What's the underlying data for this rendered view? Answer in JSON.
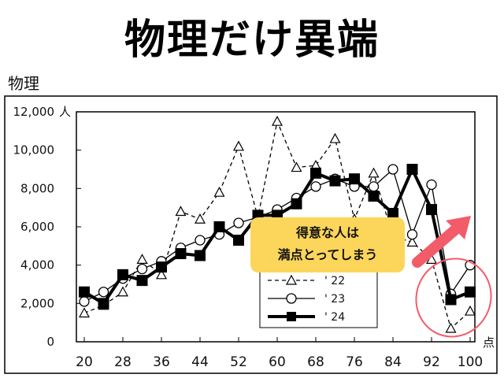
{
  "headline": "物理だけ異端",
  "subject_label": "物理",
  "callout": {
    "line1": "得意な人は",
    "line2": "満点とってしまう"
  },
  "colors": {
    "callout_bg": "#fcd65a",
    "arrow": "#f25c69",
    "highlight_ring": "#f25c69",
    "series": "#000000"
  },
  "chart_data": {
    "type": "line",
    "ylim": [
      0,
      12000
    ],
    "yticks": [
      0,
      2000,
      4000,
      6000,
      8000,
      10000,
      12000
    ],
    "ytick_labels": [
      "0",
      "2,000",
      "4,000",
      "6,000",
      "8,000",
      "10,000",
      "12,000"
    ],
    "y_unit": "人",
    "xlim": [
      20,
      100
    ],
    "xticks": [
      20,
      28,
      36,
      44,
      52,
      60,
      68,
      76,
      84,
      92,
      100
    ],
    "x_unit": "点",
    "legend_position": "bottom-right",
    "grid": false,
    "x": [
      20,
      24,
      28,
      32,
      36,
      40,
      44,
      48,
      52,
      56,
      60,
      64,
      68,
      72,
      76,
      80,
      84,
      88,
      92,
      96,
      100
    ],
    "series": [
      {
        "name": "' 22",
        "style": "dashed",
        "marker": "triangle",
        "values": [
          1500,
          1900,
          2600,
          4300,
          3500,
          6800,
          6400,
          7800,
          10200,
          6500,
          11500,
          9100,
          9200,
          10600,
          6400,
          8800,
          5500,
          5200,
          4300,
          700,
          1600
        ]
      },
      {
        "name": "' 23",
        "style": "solid",
        "marker": "circle",
        "values": [
          2100,
          2600,
          3300,
          3800,
          4200,
          4900,
          5300,
          5600,
          6200,
          6500,
          6900,
          7500,
          8100,
          8500,
          8100,
          8100,
          9000,
          5600,
          8200,
          2500,
          4000
        ]
      },
      {
        "name": "' 24",
        "style": "bold",
        "marker": "square",
        "values": [
          2600,
          2000,
          3500,
          3200,
          3900,
          4600,
          4500,
          6000,
          5300,
          6600,
          6600,
          7200,
          8800,
          8400,
          8500,
          7600,
          6700,
          9000,
          6900,
          2200,
          2600
        ]
      }
    ]
  }
}
